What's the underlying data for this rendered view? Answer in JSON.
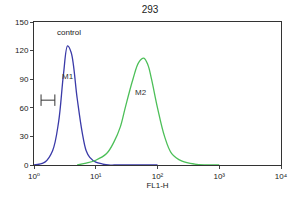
{
  "chart_data": {
    "type": "line",
    "title": "293",
    "x_label": "FL1-H",
    "log": "x",
    "grid": false,
    "xlim": [
      1,
      10000
    ],
    "xticks": [
      {
        "value": 1,
        "label": "10⁰"
      },
      {
        "value": 10,
        "label": "10¹"
      },
      {
        "value": 100,
        "label": "10²"
      },
      {
        "value": 1000,
        "label": "10³"
      },
      {
        "value": 10000,
        "label": "10⁴"
      }
    ],
    "ylim": [
      0,
      150
    ],
    "yticks": [
      0,
      30,
      60,
      90,
      120,
      150
    ],
    "series": [
      {
        "color": "#3a3aa8",
        "x": [
          1,
          1.5,
          2,
          2.5,
          3,
          3.5,
          4,
          5,
          6,
          7,
          8,
          10,
          13,
          16,
          20,
          30,
          50,
          100
        ],
        "values": [
          0,
          3,
          15,
          45,
          95,
          125,
          118,
          70,
          35,
          15,
          8,
          3,
          1,
          0,
          0,
          0,
          0,
          0
        ]
      },
      {
        "color": "#4cbf58",
        "x": [
          5,
          7,
          10,
          15,
          20,
          25,
          30,
          40,
          50,
          60,
          70,
          80,
          100,
          130,
          170,
          250,
          400,
          1000
        ],
        "values": [
          0,
          2,
          5,
          12,
          25,
          40,
          60,
          90,
          108,
          112,
          105,
          90,
          60,
          30,
          12,
          4,
          1,
          0
        ]
      }
    ],
    "annotations": [
      {
        "text": "control",
        "x": 2.2,
        "y": 132
      }
    ],
    "gates": [
      {
        "label": "M1",
        "x": [
          1.8,
          7
        ],
        "y": 85,
        "color": "#333333"
      },
      {
        "label": "M2",
        "x": [
          20,
          150
        ],
        "y": 68,
        "color": "#333333"
      }
    ]
  }
}
